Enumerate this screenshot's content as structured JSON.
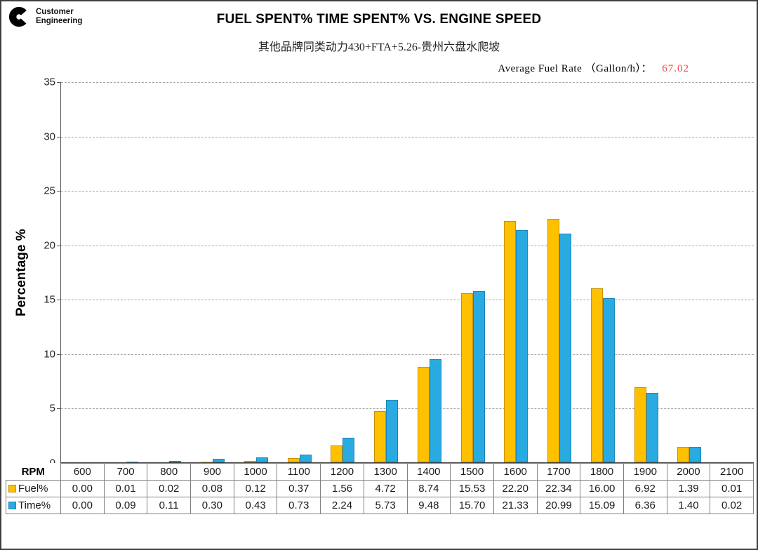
{
  "header": {
    "logo_text": "Customer Engineering",
    "title": "FUEL SPENT% TIME SPENT% VS. ENGINE SPEED",
    "subtitle": "其他品牌同类动力430+FTA+5.26-贵州六盘水爬坡",
    "avg_fuel_rate_label": "Average Fuel Rate （Gallon/h）：",
    "avg_fuel_rate_value": "67.02",
    "avg_fuel_rate_value_color": "#ff4040"
  },
  "chart_data": {
    "type": "bar",
    "title": "FUEL SPENT% TIME SPENT% VS. ENGINE SPEED",
    "subtitle": "其他品牌同类动力430+FTA+5.26-贵州六盘水爬坡",
    "xlabel": "RPM",
    "ylabel": "Percentage %",
    "ylim": [
      0,
      35
    ],
    "ytick_step": 5,
    "grid": "horizontal-dashed",
    "legend_position": "table-left-column",
    "categories": [
      600,
      700,
      800,
      900,
      1000,
      1100,
      1200,
      1300,
      1400,
      1500,
      1600,
      1700,
      1800,
      1900,
      2000,
      2100
    ],
    "series": [
      {
        "name": "Fuel%",
        "color": "#FFC000",
        "border_color": "#C79000",
        "values": [
          0.0,
          0.01,
          0.02,
          0.08,
          0.12,
          0.37,
          1.56,
          4.72,
          8.74,
          15.53,
          22.2,
          22.34,
          16.0,
          6.92,
          1.39,
          0.01
        ]
      },
      {
        "name": "Time%",
        "color": "#29ABE2",
        "border_color": "#1C84B8",
        "values": [
          0.0,
          0.09,
          0.11,
          0.3,
          0.43,
          0.73,
          2.24,
          5.73,
          9.48,
          15.7,
          21.33,
          20.99,
          15.09,
          6.36,
          1.4,
          0.02
        ]
      }
    ]
  },
  "table": {
    "corner_label": "RPM",
    "value_decimals": 2
  }
}
